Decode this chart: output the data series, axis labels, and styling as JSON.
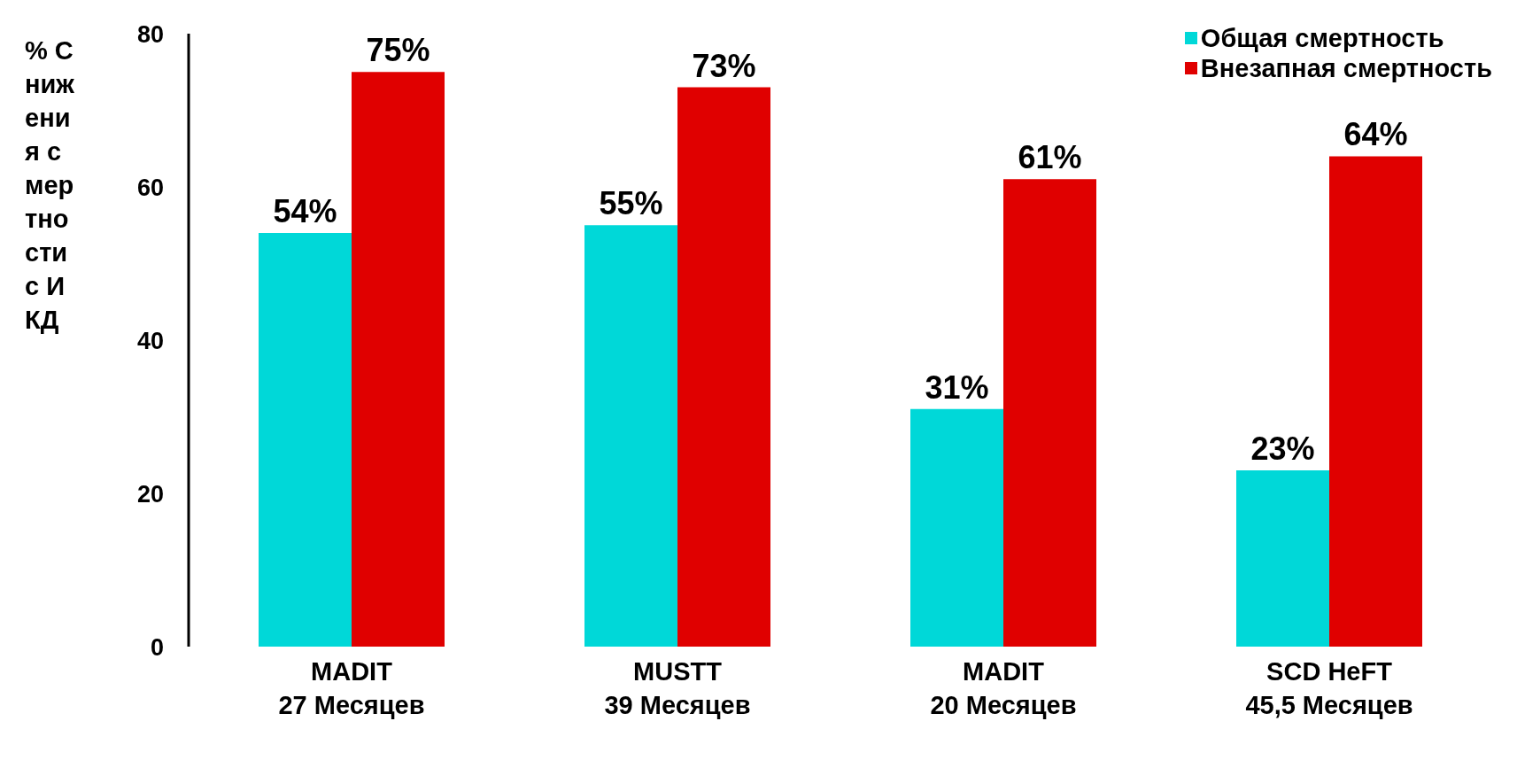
{
  "chart_data": {
    "type": "bar",
    "ylabel": "% Снижения смертности с ИКД",
    "categories": [
      "MADIT\n27 Месяцев",
      "MUSTT\n39 Месяцев",
      "MADIT\n20 Месяцев",
      "SCD HeFT\n45,5 Месяцев"
    ],
    "series": [
      {
        "name": "Общая смертность",
        "color": "#00d8d8",
        "values": [
          54,
          55,
          31,
          23
        ],
        "value_labels": [
          "54%",
          "55%",
          "31%",
          "23%"
        ]
      },
      {
        "name": "Внезапная смертность",
        "color": "#e00000",
        "values": [
          75,
          73,
          61,
          64
        ],
        "value_labels": [
          "75%",
          "73%",
          "61%",
          "64%"
        ]
      }
    ],
    "ylim": [
      0,
      80
    ],
    "yticks": [
      0,
      20,
      40,
      60,
      80
    ],
    "grid": false,
    "legend": "top right"
  }
}
